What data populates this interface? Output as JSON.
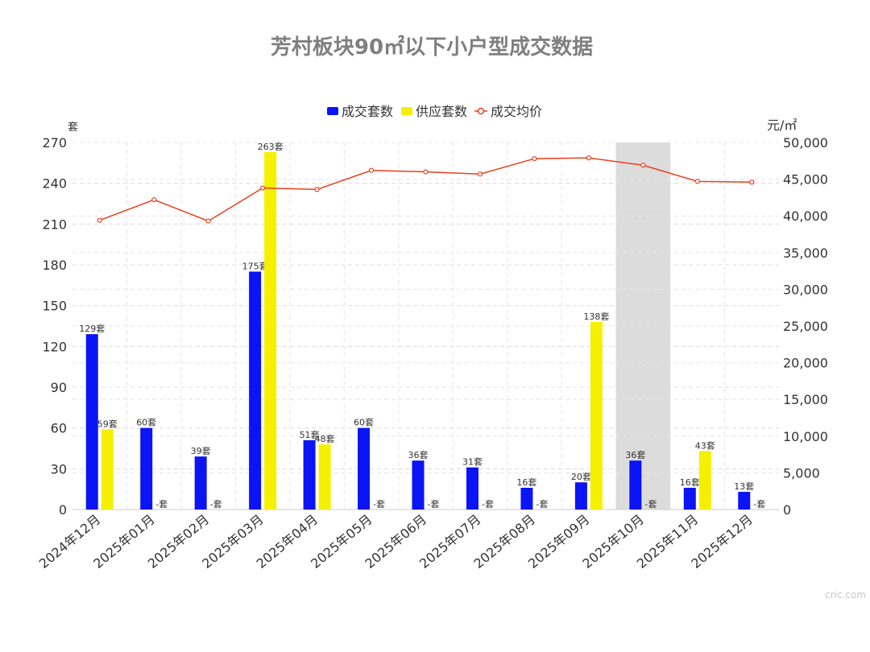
{
  "chart_data": {
    "type": "bar",
    "title": "芳村板块90㎡以下小户型成交数据",
    "categories": [
      "2024年12月",
      "2025年01月",
      "2025年02月",
      "2025年03月",
      "2025年04月",
      "2025年05月",
      "2025年06月",
      "2025年07月",
      "2025年08月",
      "2025年09月",
      "2025年10月",
      "2025年11月",
      "2025年12月"
    ],
    "series": [
      {
        "name": "成交套数",
        "type": "bar",
        "axis": "left",
        "color": "#0a14f5",
        "values": [
          129,
          60,
          39,
          175,
          51,
          60,
          36,
          31,
          16,
          20,
          36,
          16,
          13
        ],
        "labels": [
          "129套",
          "60套",
          "39套",
          "175套",
          "51套",
          "60套",
          "36套",
          "31套",
          "16套",
          "20套",
          "36套",
          "16套",
          "13套"
        ]
      },
      {
        "name": "供应套数",
        "type": "bar",
        "axis": "left",
        "color": "#f5f000",
        "values": [
          59,
          null,
          null,
          263,
          48,
          null,
          null,
          null,
          null,
          138,
          null,
          43,
          null
        ],
        "labels": [
          "59套",
          "-套",
          "-套",
          "263套",
          "48套",
          "-套",
          "-套",
          "-套",
          "-套",
          "138套",
          "-套",
          "43套",
          "-套"
        ]
      },
      {
        "name": "成交均价",
        "type": "line",
        "axis": "right",
        "color": "#e8401c",
        "values": [
          39400,
          42200,
          39300,
          43800,
          43600,
          46200,
          46000,
          45700,
          47800,
          47900,
          46900,
          44700,
          44600
        ]
      }
    ],
    "left_axis": {
      "unit": "套",
      "ticks": [
        "0",
        "30",
        "60",
        "90",
        "120",
        "150",
        "180",
        "210",
        "240",
        "270"
      ],
      "min": 0,
      "max": 270
    },
    "right_axis": {
      "unit": "元/㎡",
      "ticks": [
        "0",
        "5,000",
        "10,000",
        "15,000",
        "20,000",
        "25,000",
        "30,000",
        "35,000",
        "40,000",
        "45,000",
        "50,000"
      ],
      "min": 0,
      "max": 50000
    },
    "highlight_category": "2025年10月",
    "legend_position": "top-center",
    "grid": true
  },
  "watermark": "cric.com"
}
